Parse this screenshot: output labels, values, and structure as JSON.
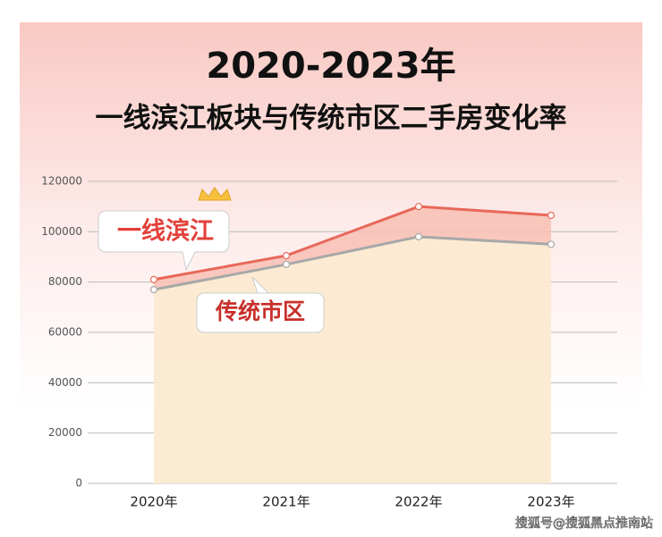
{
  "chart_data": {
    "type": "line",
    "title": "2020-2023年",
    "subtitle": "一线滨江板块与传统市区二手房变化率",
    "categories": [
      "2020年",
      "2021年",
      "2022年",
      "2023年"
    ],
    "series": [
      {
        "name": "一线滨江",
        "color": "#e8685a",
        "values": [
          81000,
          90500,
          110000,
          106500
        ]
      },
      {
        "name": "传统市区",
        "color": "#a8a8a8",
        "values": [
          77000,
          87000,
          98000,
          95000
        ]
      }
    ],
    "ylim": [
      0,
      120000
    ],
    "yticks": [
      0,
      20000,
      40000,
      60000,
      80000,
      100000,
      120000
    ],
    "grid": true
  },
  "watermark": "搜狐号@搜狐黑点推南站"
}
